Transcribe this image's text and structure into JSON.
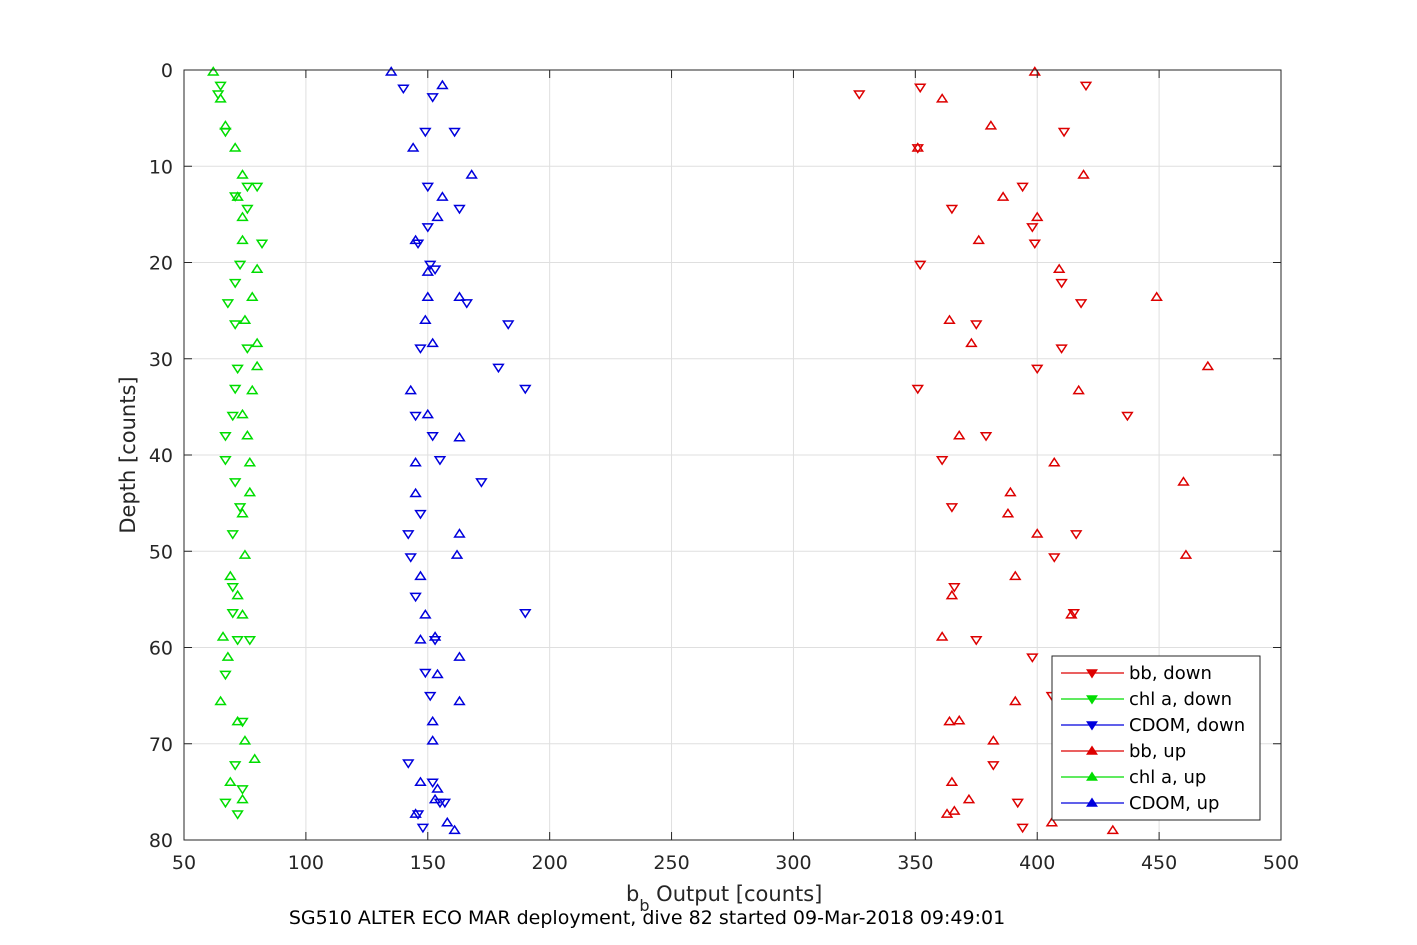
{
  "chart_data": {
    "type": "scatter",
    "caption": "SG510 ALTER ECO MAR deployment, dive 82 started 09-Mar-2018 09:49:01",
    "xlabel_main": "b",
    "xlabel_sub": "b",
    "xlabel_rest": " Output [counts]",
    "ylabel": "Depth [counts]",
    "xlim": [
      50,
      500
    ],
    "ylim": [
      0,
      80
    ],
    "y_reversed": true,
    "grid": true,
    "legend_position": "bottom-right",
    "xticks": [
      "50",
      "100",
      "150",
      "200",
      "250",
      "300",
      "350",
      "400",
      "450",
      "500"
    ],
    "yticks": [
      "0",
      "10",
      "20",
      "30",
      "40",
      "50",
      "60",
      "70",
      "80"
    ],
    "series": [
      {
        "name": "bb, down",
        "color": "#dd0000",
        "marker": "triangle-down",
        "x": [
          420,
          352,
          327,
          411,
          351,
          394,
          365,
          398,
          399,
          352,
          410,
          418,
          375,
          410,
          400,
          351,
          437,
          379,
          361,
          365,
          416,
          407,
          366,
          415,
          375,
          398,
          406,
          382,
          392,
          394
        ],
        "y": [
          1.6,
          1.8,
          2.5,
          6.4,
          8.1,
          12.1,
          14.4,
          16.3,
          18,
          20.2,
          22.1,
          24.2,
          26.4,
          28.9,
          31,
          33.1,
          35.9,
          38,
          40.5,
          45.4,
          48.2,
          50.6,
          53.7,
          56.4,
          59.2,
          61,
          65,
          72.2,
          76.1,
          78.7
        ]
      },
      {
        "name": "chl a, down",
        "color": "#00dd00",
        "marker": "triangle-down",
        "x": [
          65,
          64,
          67,
          76,
          71,
          80,
          76,
          82,
          73,
          71,
          68,
          71,
          76,
          72,
          71,
          70,
          67,
          67,
          71,
          73,
          70,
          70,
          70,
          72,
          77,
          67,
          74,
          71,
          74,
          67,
          72
        ],
        "y": [
          1.6,
          2.5,
          6.4,
          12.1,
          13.1,
          12.1,
          14.4,
          18,
          20.2,
          22.1,
          24.2,
          26.4,
          28.9,
          31,
          33.1,
          35.9,
          38,
          40.5,
          42.8,
          45.4,
          48.2,
          53.7,
          56.4,
          59.2,
          59.2,
          62.8,
          67.7,
          72.2,
          74.7,
          76.1,
          77.3
        ]
      },
      {
        "name": "CDOM, down",
        "color": "#0000dd",
        "marker": "triangle-down",
        "x": [
          140,
          152,
          149,
          161,
          150,
          163,
          150,
          146,
          151,
          153,
          166,
          183,
          147,
          179,
          190,
          145,
          152,
          155,
          172,
          147,
          142,
          143,
          145,
          190,
          153,
          149,
          151,
          142,
          152,
          155,
          157,
          146,
          148
        ],
        "y": [
          1.9,
          2.8,
          6.4,
          6.4,
          12.1,
          14.4,
          16.3,
          18,
          20.2,
          20.7,
          24.2,
          26.4,
          28.9,
          30.9,
          33.1,
          35.9,
          38,
          40.5,
          42.8,
          46.1,
          48.2,
          50.6,
          54.7,
          56.4,
          59.2,
          62.6,
          65,
          72,
          74,
          76.1,
          76.1,
          77.3,
          78.7
        ]
      },
      {
        "name": "bb, up",
        "color": "#dd0000",
        "marker": "triangle-up",
        "x": [
          399,
          361,
          381,
          351,
          419,
          386,
          400,
          376,
          409,
          449,
          364,
          373,
          470,
          417,
          368,
          407,
          460,
          389,
          388,
          400,
          461,
          391,
          365,
          414,
          361,
          391,
          364,
          368,
          382,
          365,
          372,
          363,
          366,
          406,
          431
        ],
        "y": [
          0.2,
          3,
          5.8,
          8.1,
          10.9,
          13.2,
          15.3,
          17.7,
          20.7,
          23.6,
          26,
          28.4,
          30.8,
          33.3,
          38,
          40.8,
          42.8,
          43.9,
          46.1,
          48.2,
          50.4,
          52.6,
          54.6,
          56.6,
          58.9,
          65.6,
          67.7,
          67.6,
          69.7,
          74,
          75.8,
          77.3,
          77,
          78.2,
          79
        ]
      },
      {
        "name": "chl a, up",
        "color": "#00dd00",
        "marker": "triangle-up",
        "x": [
          62,
          65,
          67,
          71,
          74,
          72,
          74,
          74,
          80,
          78,
          75,
          80,
          80,
          78,
          74,
          76,
          77,
          77,
          74,
          75,
          69,
          72,
          74,
          66,
          68,
          65,
          72,
          75,
          79,
          69,
          74
        ],
        "y": [
          0.2,
          3,
          5.8,
          8.1,
          10.9,
          13.2,
          15.3,
          17.7,
          20.7,
          23.6,
          26,
          28.4,
          30.8,
          33.3,
          35.8,
          38,
          40.8,
          43.9,
          46.1,
          50.4,
          52.6,
          54.6,
          56.6,
          58.9,
          61,
          65.6,
          67.7,
          69.7,
          71.6,
          74,
          75.8
        ]
      },
      {
        "name": "CDOM, up",
        "color": "#0000dd",
        "marker": "triangle-up",
        "x": [
          135,
          156,
          144,
          168,
          156,
          154,
          145,
          150,
          163,
          152,
          149,
          150,
          163,
          145,
          143,
          150,
          145,
          163,
          147,
          162,
          163,
          147,
          149,
          153,
          154,
          163,
          152,
          152,
          147,
          153,
          154,
          158,
          145,
          161
        ],
        "y": [
          0.2,
          1.6,
          8.1,
          10.9,
          13.2,
          15.3,
          17.7,
          21,
          23.6,
          28.4,
          26,
          23.6,
          38.2,
          40.8,
          33.3,
          35.8,
          44,
          48.2,
          52.6,
          50.4,
          61,
          59.2,
          56.6,
          58.9,
          62.8,
          65.6,
          67.7,
          69.7,
          74,
          75.8,
          74.7,
          78.2,
          77.3,
          79
        ]
      }
    ]
  }
}
